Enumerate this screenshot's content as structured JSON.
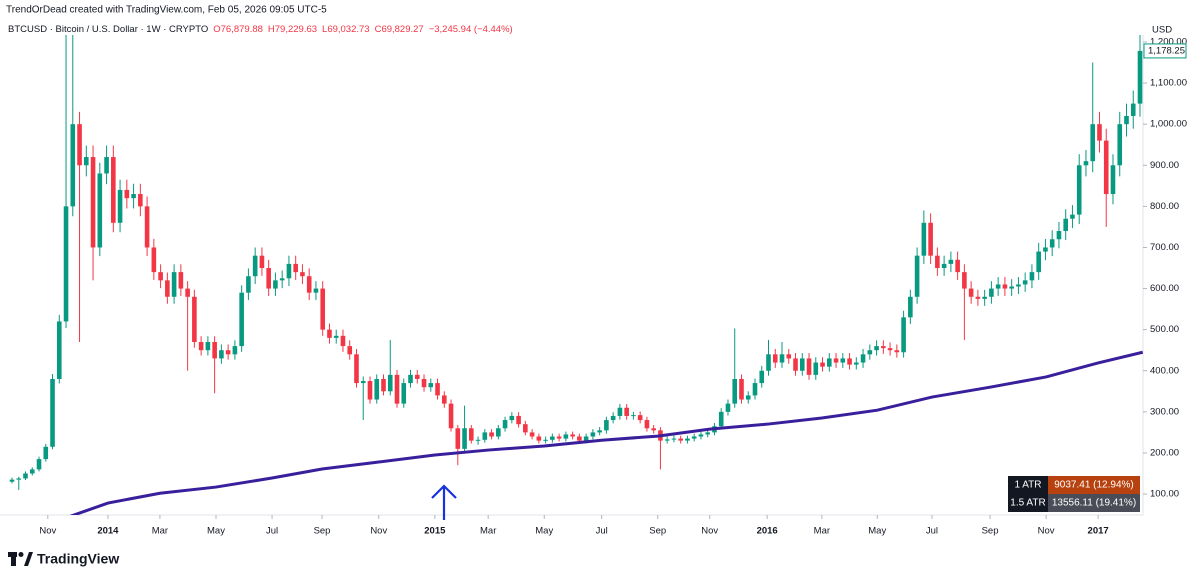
{
  "header": {
    "credit": "TrendOrDead created with TradingView.com, Feb 05, 2026 09:05 UTC-5",
    "symbol": "BTCUSD · Bitcoin / U.S. Dollar · 1W · CRYPTO",
    "ohlc": [
      "O76,879.88",
      "H79,229.63",
      "L69,032.73",
      "C69,829.27",
      "−3,245.94 (−4.44%)"
    ]
  },
  "chart_data": {
    "type": "candlestick",
    "currency": "USD",
    "up_color": "#089981",
    "down_color": "#f23645",
    "ylim": [
      49,
      1217
    ],
    "yticks": [
      {
        "value": 100,
        "label": "100.00"
      },
      {
        "value": 200,
        "label": "200.00"
      },
      {
        "value": 300,
        "label": "300.00"
      },
      {
        "value": 400,
        "label": "400.00"
      },
      {
        "value": 500,
        "label": "500.00"
      },
      {
        "value": 600,
        "label": "600.00"
      },
      {
        "value": 700,
        "label": "700.00"
      },
      {
        "value": 800,
        "label": "800.00"
      },
      {
        "value": 900,
        "label": "900.00"
      },
      {
        "value": 1000,
        "label": "1,000.00"
      },
      {
        "value": 1100,
        "label": "1,100.00"
      },
      {
        "value": 1200,
        "label": "1,200.00"
      }
    ],
    "xticks": [
      {
        "value": 5.3,
        "label": "Nov"
      },
      {
        "value": 14.2,
        "label": "2014"
      },
      {
        "value": 21.9,
        "label": "Mar"
      },
      {
        "value": 30.2,
        "label": "May"
      },
      {
        "value": 38.5,
        "label": "Jul"
      },
      {
        "value": 45.9,
        "label": "Sep"
      },
      {
        "value": 54.3,
        "label": "Nov"
      },
      {
        "value": 62.6,
        "label": "2015"
      },
      {
        "value": 70.5,
        "label": "Mar"
      },
      {
        "value": 78.8,
        "label": "May"
      },
      {
        "value": 87.3,
        "label": "Jul"
      },
      {
        "value": 95.6,
        "label": "Sep"
      },
      {
        "value": 103.3,
        "label": "Nov"
      },
      {
        "value": 111.8,
        "label": "2016"
      },
      {
        "value": 119.9,
        "label": "Mar"
      },
      {
        "value": 128.1,
        "label": "May"
      },
      {
        "value": 136.2,
        "label": "Jul"
      },
      {
        "value": 144.8,
        "label": "Sep"
      },
      {
        "value": 153.1,
        "label": "Nov"
      },
      {
        "value": 160.8,
        "label": "2017"
      }
    ],
    "price_label": "1,178.25",
    "candles": [
      [
        130,
        140,
        126,
        135
      ],
      [
        135,
        142,
        110,
        138
      ],
      [
        138,
        155,
        134,
        150
      ],
      [
        150,
        165,
        145,
        160
      ],
      [
        160,
        191,
        155,
        185
      ],
      [
        185,
        222,
        179,
        215
      ],
      [
        215,
        392,
        209,
        380
      ],
      [
        380,
        536,
        369,
        520
      ],
      [
        520,
        1240,
        504,
        800
      ],
      [
        800,
        1240,
        776,
        1000
      ],
      [
        1000,
        1030,
        470,
        900
      ],
      [
        900,
        948,
        873,
        920
      ],
      [
        920,
        948,
        620,
        700
      ],
      [
        700,
        906,
        679,
        880
      ],
      [
        880,
        948,
        854,
        920
      ],
      [
        920,
        948,
        737,
        760
      ],
      [
        760,
        865,
        737,
        840
      ],
      [
        840,
        865,
        795,
        820
      ],
      [
        820,
        855,
        795,
        830
      ],
      [
        830,
        855,
        776,
        800
      ],
      [
        800,
        824,
        679,
        700
      ],
      [
        700,
        721,
        621,
        640
      ],
      [
        640,
        659,
        601,
        620
      ],
      [
        620,
        639,
        563,
        580
      ],
      [
        580,
        659,
        563,
        640
      ],
      [
        640,
        659,
        582,
        600
      ],
      [
        600,
        618,
        400,
        580
      ],
      [
        580,
        597,
        456,
        470
      ],
      [
        470,
        484,
        437,
        450
      ],
      [
        450,
        484,
        437,
        470
      ],
      [
        470,
        484,
        345,
        430
      ],
      [
        430,
        464,
        417,
        450
      ],
      [
        450,
        464,
        427,
        440
      ],
      [
        440,
        474,
        427,
        460
      ],
      [
        460,
        608,
        446,
        590
      ],
      [
        590,
        649,
        572,
        630
      ],
      [
        630,
        700,
        611,
        680
      ],
      [
        680,
        700,
        631,
        650
      ],
      [
        650,
        670,
        582,
        600
      ],
      [
        600,
        639,
        582,
        620
      ],
      [
        620,
        644,
        601,
        625
      ],
      [
        625,
        680,
        606,
        660
      ],
      [
        660,
        680,
        621,
        640
      ],
      [
        640,
        659,
        611,
        630
      ],
      [
        630,
        649,
        572,
        590
      ],
      [
        590,
        618,
        572,
        600
      ],
      [
        600,
        618,
        485,
        500
      ],
      [
        500,
        515,
        466,
        480
      ],
      [
        480,
        500,
        466,
        485
      ],
      [
        485,
        500,
        446,
        460
      ],
      [
        460,
        474,
        427,
        440
      ],
      [
        440,
        453,
        359,
        370
      ],
      [
        370,
        386,
        280,
        375
      ],
      [
        375,
        386,
        320,
        330
      ],
      [
        330,
        391,
        320,
        380
      ],
      [
        380,
        391,
        340,
        350
      ],
      [
        350,
        475,
        340,
        390
      ],
      [
        390,
        402,
        310,
        320
      ],
      [
        320,
        381,
        310,
        370
      ],
      [
        370,
        402,
        359,
        390
      ],
      [
        390,
        402,
        369,
        380
      ],
      [
        380,
        391,
        349,
        360
      ],
      [
        360,
        381,
        349,
        370
      ],
      [
        370,
        381,
        330,
        340
      ],
      [
        340,
        350,
        310,
        320
      ],
      [
        320,
        330,
        252,
        260
      ],
      [
        260,
        268,
        170,
        210
      ],
      [
        210,
        315,
        204,
        260
      ],
      [
        260,
        268,
        223,
        230
      ],
      [
        230,
        240,
        220,
        232
      ],
      [
        232,
        258,
        225,
        250
      ],
      [
        250,
        258,
        233,
        240
      ],
      [
        240,
        268,
        233,
        260
      ],
      [
        260,
        288,
        252,
        280
      ],
      [
        280,
        299,
        272,
        290
      ],
      [
        290,
        299,
        262,
        270
      ],
      [
        270,
        278,
        243,
        250
      ],
      [
        250,
        258,
        233,
        240
      ],
      [
        240,
        247,
        223,
        230
      ],
      [
        230,
        240,
        223,
        232
      ],
      [
        232,
        247,
        225,
        240
      ],
      [
        240,
        247,
        228,
        235
      ],
      [
        235,
        252,
        228,
        245
      ],
      [
        245,
        252,
        233,
        240
      ],
      [
        240,
        247,
        223,
        230
      ],
      [
        230,
        247,
        223,
        240
      ],
      [
        240,
        258,
        233,
        250
      ],
      [
        250,
        263,
        243,
        255
      ],
      [
        255,
        288,
        247,
        280
      ],
      [
        280,
        299,
        272,
        290
      ],
      [
        290,
        319,
        281,
        310
      ],
      [
        310,
        319,
        281,
        290
      ],
      [
        290,
        300,
        281,
        292
      ],
      [
        292,
        301,
        272,
        280
      ],
      [
        280,
        288,
        252,
        260
      ],
      [
        260,
        268,
        247,
        255
      ],
      [
        255,
        263,
        160,
        230
      ],
      [
        230,
        240,
        223,
        233
      ],
      [
        233,
        242,
        226,
        235
      ],
      [
        235,
        242,
        223,
        230
      ],
      [
        230,
        242,
        223,
        235
      ],
      [
        235,
        247,
        228,
        240
      ],
      [
        240,
        252,
        233,
        245
      ],
      [
        245,
        258,
        238,
        250
      ],
      [
        250,
        273,
        243,
        265
      ],
      [
        265,
        309,
        257,
        300
      ],
      [
        300,
        330,
        291,
        320
      ],
      [
        320,
        503,
        310,
        380
      ],
      [
        380,
        391,
        320,
        330
      ],
      [
        330,
        350,
        320,
        340
      ],
      [
        340,
        381,
        330,
        370
      ],
      [
        370,
        412,
        359,
        400
      ],
      [
        400,
        475,
        388,
        440
      ],
      [
        440,
        453,
        407,
        420
      ],
      [
        420,
        470,
        407,
        440
      ],
      [
        440,
        453,
        417,
        430
      ],
      [
        430,
        443,
        388,
        400
      ],
      [
        400,
        443,
        388,
        430
      ],
      [
        430,
        443,
        378,
        390
      ],
      [
        390,
        433,
        378,
        420
      ],
      [
        420,
        433,
        398,
        410
      ],
      [
        410,
        443,
        398,
        430
      ],
      [
        430,
        443,
        407,
        420
      ],
      [
        420,
        443,
        407,
        430
      ],
      [
        430,
        443,
        403,
        415
      ],
      [
        415,
        433,
        403,
        420
      ],
      [
        420,
        453,
        407,
        440
      ],
      [
        440,
        464,
        427,
        450
      ],
      [
        450,
        474,
        437,
        460
      ],
      [
        460,
        474,
        441,
        455
      ],
      [
        455,
        469,
        437,
        450
      ],
      [
        450,
        464,
        432,
        445
      ],
      [
        445,
        546,
        432,
        530
      ],
      [
        530,
        597,
        514,
        580
      ],
      [
        580,
        700,
        563,
        680
      ],
      [
        680,
        790,
        660,
        760
      ],
      [
        760,
        783,
        660,
        680
      ],
      [
        680,
        700,
        631,
        650
      ],
      [
        650,
        680,
        631,
        660
      ],
      [
        660,
        690,
        640,
        670
      ],
      [
        670,
        690,
        621,
        640
      ],
      [
        640,
        659,
        475,
        600
      ],
      [
        600,
        618,
        563,
        580
      ],
      [
        580,
        597,
        558,
        575
      ],
      [
        575,
        597,
        558,
        580
      ],
      [
        580,
        618,
        563,
        600
      ],
      [
        600,
        628,
        582,
        610
      ],
      [
        610,
        628,
        582,
        600
      ],
      [
        600,
        623,
        582,
        605
      ],
      [
        605,
        628,
        587,
        610
      ],
      [
        610,
        639,
        592,
        620
      ],
      [
        620,
        659,
        601,
        640
      ],
      [
        640,
        711,
        621,
        690
      ],
      [
        690,
        721,
        669,
        700
      ],
      [
        700,
        742,
        679,
        720
      ],
      [
        720,
        762,
        698,
        740
      ],
      [
        740,
        793,
        718,
        770
      ],
      [
        770,
        803,
        747,
        780
      ],
      [
        780,
        927,
        757,
        900
      ],
      [
        900,
        937,
        873,
        910
      ],
      [
        910,
        1150,
        883,
        1000
      ],
      [
        1000,
        1030,
        931,
        960
      ],
      [
        960,
        989,
        750,
        830
      ],
      [
        830,
        927,
        805,
        900
      ],
      [
        900,
        1030,
        873,
        1000
      ],
      [
        1000,
        1050,
        970,
        1020
      ],
      [
        1020,
        1082,
        989,
        1050
      ],
      [
        1050,
        1240,
        1018,
        1178.25
      ]
    ],
    "ma": {
      "color": "#3a1f9c",
      "x": [
        7.1,
        14.2,
        21.9,
        30.2,
        38.5,
        45.9,
        54.3,
        62.6,
        70.5,
        78.8,
        87.3,
        95.6,
        103.3,
        111.8,
        119.9,
        128.1,
        136.2,
        144.8,
        153.1,
        160.8,
        167.4
      ],
      "values": [
        37,
        78,
        102,
        117,
        139,
        161,
        178,
        195,
        207,
        217,
        231,
        241,
        258,
        270,
        285,
        304,
        336,
        360,
        385,
        419,
        445
      ]
    },
    "atr_table": [
      [
        "1 ATR",
        "9037.41 (12.94%)"
      ],
      [
        "1.5 ATR",
        "13556.11 (19.41%)"
      ]
    ]
  },
  "footer": {
    "brand": "TradingView"
  }
}
